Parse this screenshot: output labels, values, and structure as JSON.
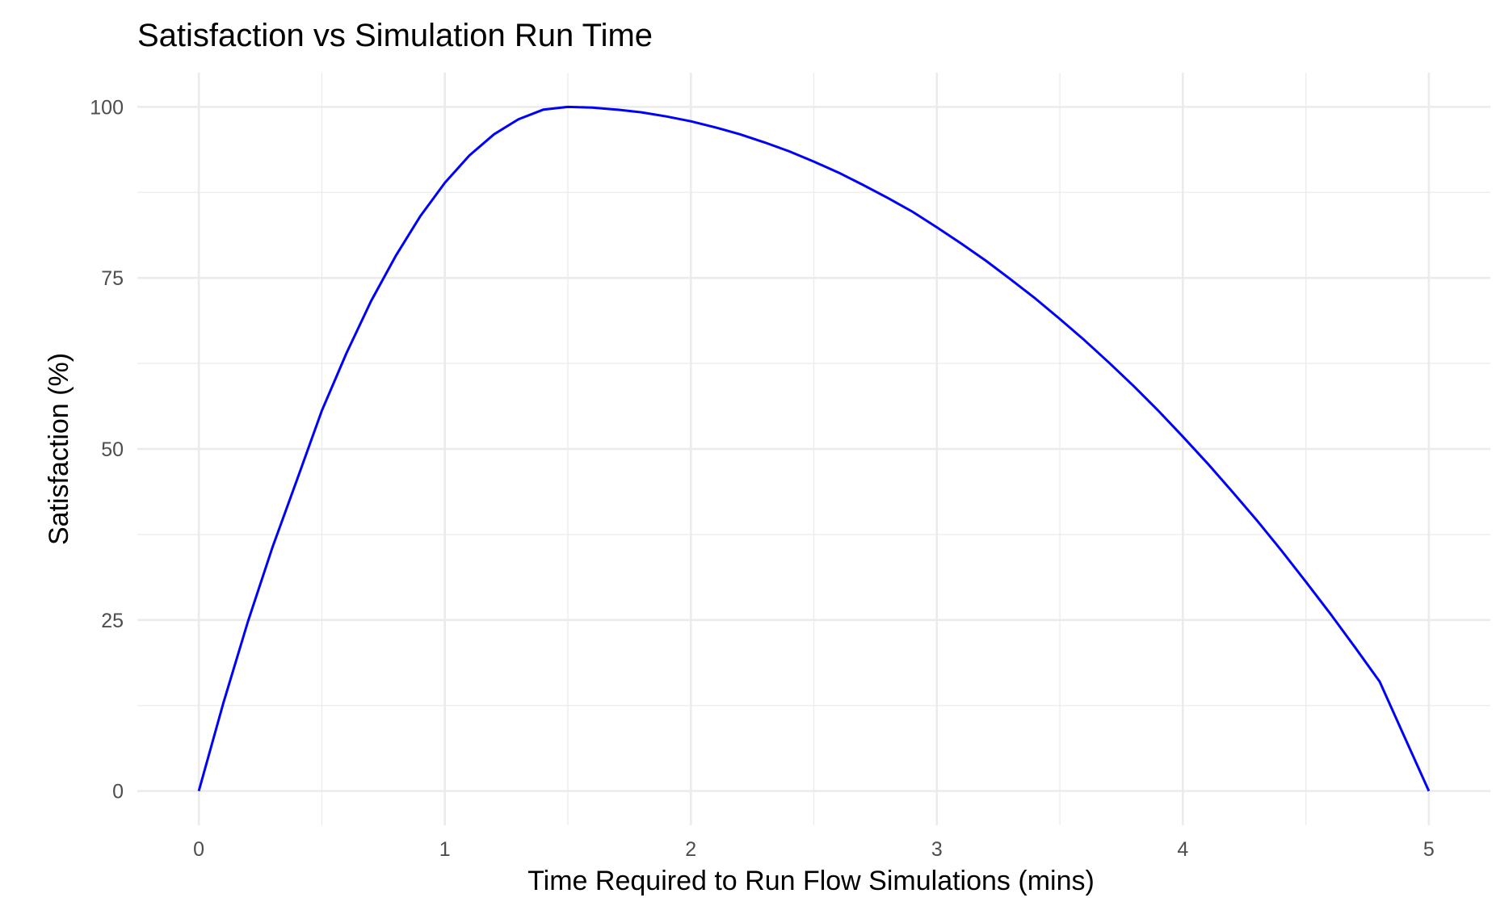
{
  "chart_data": {
    "type": "line",
    "title": "Satisfaction vs Simulation Run Time",
    "xlabel": "Time Required to Run Flow Simulations (mins)",
    "ylabel": "Satisfaction (%)",
    "xlim": [
      -0.25,
      5.25
    ],
    "ylim": [
      -5,
      105
    ],
    "x_ticks": [
      0,
      1,
      2,
      3,
      4,
      5
    ],
    "x_tick_labels": [
      "0",
      "1",
      "2",
      "3",
      "4",
      "5"
    ],
    "y_ticks": [
      0,
      25,
      50,
      75,
      100
    ],
    "y_tick_labels": [
      "0",
      "25",
      "50",
      "75",
      "100"
    ],
    "grid": true,
    "series": [
      {
        "color": "#0000ff",
        "x": [
          0,
          0.1,
          0.2,
          0.3,
          0.4,
          0.5,
          0.6,
          0.7,
          0.8,
          0.9,
          1.0,
          1.1,
          1.2,
          1.3,
          1.4,
          1.5,
          1.6,
          1.7,
          1.8,
          1.9,
          2.0,
          2.1,
          2.2,
          2.3,
          2.4,
          2.5,
          2.6,
          2.7,
          2.8,
          2.9,
          3.0,
          3.1,
          3.2,
          3.3,
          3.4,
          3.5,
          3.6,
          3.7,
          3.8,
          3.9,
          4.0,
          4.1,
          4.2,
          4.3,
          4.4,
          4.5,
          4.6,
          4.7,
          4.8,
          4.9,
          5.0
        ],
        "y": [
          0,
          12.9,
          24.8,
          35.7,
          45.6,
          55.6,
          64.0,
          71.6,
          78.2,
          84.0,
          88.9,
          92.9,
          96.0,
          98.2,
          99.6,
          100.0,
          99.9,
          99.6,
          99.2,
          98.6,
          97.9,
          97.0,
          96.0,
          94.8,
          93.5,
          92.0,
          90.4,
          88.6,
          86.7,
          84.7,
          82.4,
          80.0,
          77.5,
          74.8,
          72.0,
          69.0,
          65.9,
          62.6,
          59.2,
          55.6,
          51.8,
          47.9,
          43.8,
          39.6,
          35.2,
          30.6,
          25.9,
          21.0,
          16.0,
          8.0,
          0
        ]
      }
    ]
  }
}
